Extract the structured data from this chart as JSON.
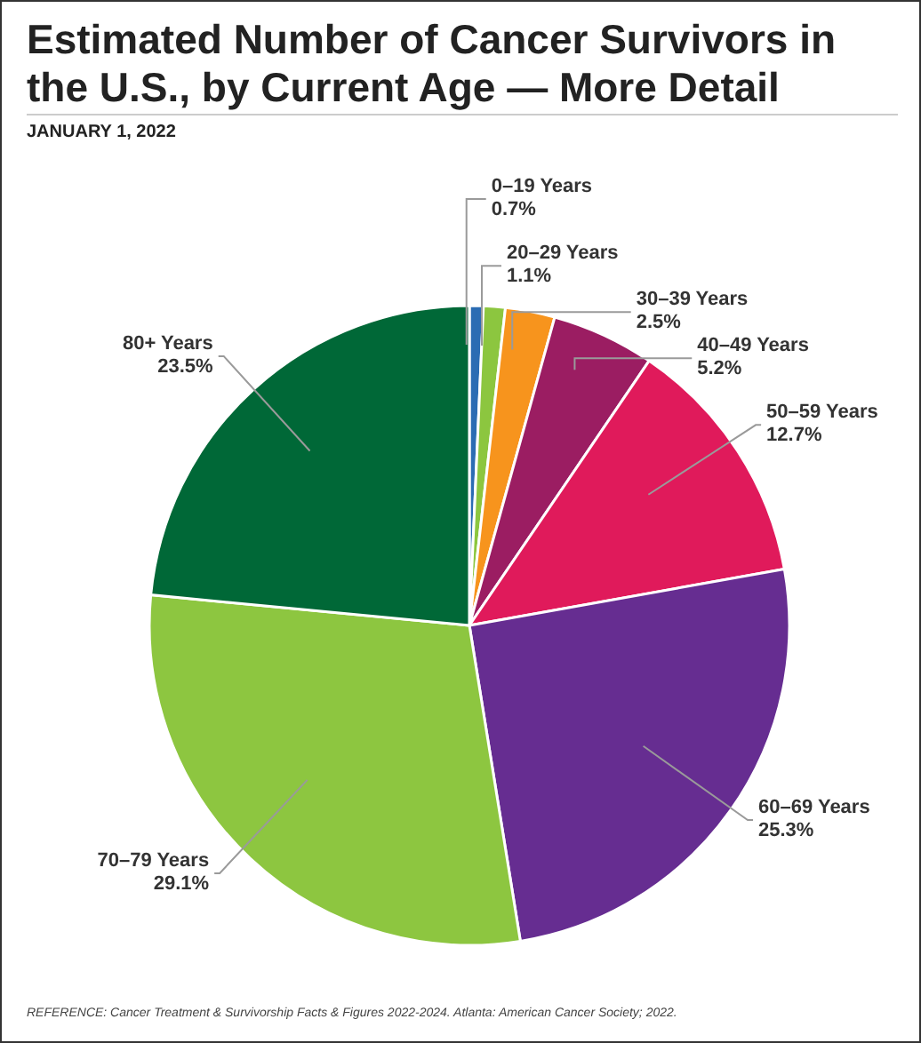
{
  "chart_data": {
    "type": "pie",
    "title": "Estimated Number of Cancer Survivors in the U.S., by Current Age — More Detail",
    "subtitle": "JANUARY 1, 2022",
    "categories": [
      "0–19 Years",
      "20–29 Years",
      "30–39 Years",
      "40–49 Years",
      "50–59 Years",
      "60–69 Years",
      "70–79 Years",
      "80+ Years"
    ],
    "values": [
      0.7,
      1.1,
      2.5,
      5.2,
      12.7,
      25.3,
      29.1,
      23.5
    ],
    "colors": [
      "#2b6cb3",
      "#8cc63f",
      "#f7941d",
      "#9b1d62",
      "#e01a5b",
      "#662d91",
      "#8dc640",
      "#006837"
    ],
    "value_labels": [
      "0.7%",
      "1.1%",
      "2.5%",
      "5.2%",
      "12.7%",
      "25.3%",
      "29.1%",
      "23.5%"
    ],
    "legend": false,
    "annotations": [
      "REFERENCE: Cancer Treatment & Survivorship Facts & Figures 2022-2024. Atlanta: American Cancer Society; 2022."
    ]
  }
}
